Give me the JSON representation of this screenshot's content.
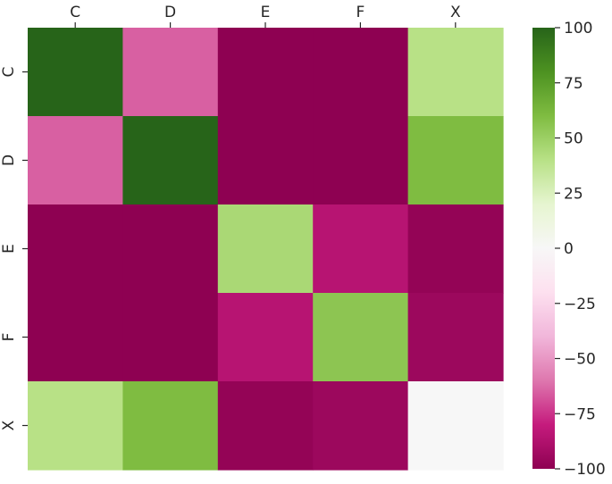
{
  "chart_data": {
    "type": "heatmap",
    "title": "",
    "xlabel": "",
    "ylabel": "",
    "x_categories": [
      "C",
      "D",
      "E",
      "F",
      "X"
    ],
    "y_categories": [
      "C",
      "D",
      "E",
      "F",
      "X"
    ],
    "x_axis_position": "top",
    "values": [
      [
        100,
        -65,
        -100,
        -100,
        40
      ],
      [
        -65,
        100,
        -100,
        -100,
        60
      ],
      [
        -100,
        -100,
        45,
        -85,
        -98
      ],
      [
        -100,
        -100,
        -85,
        55,
        -95
      ],
      [
        40,
        60,
        -98,
        -95,
        0
      ]
    ],
    "colormap": "PiYG",
    "vmin": -100,
    "vmax": 100,
    "colorbar": {
      "ticks": [
        100,
        75,
        50,
        25,
        0,
        -25,
        -50,
        -75,
        -100
      ],
      "tick_labels": [
        "100",
        "75",
        "50",
        "25",
        "0",
        "−25",
        "−50",
        "−75",
        "−100"
      ]
    },
    "grid": false,
    "legend": "colorbar-right"
  }
}
